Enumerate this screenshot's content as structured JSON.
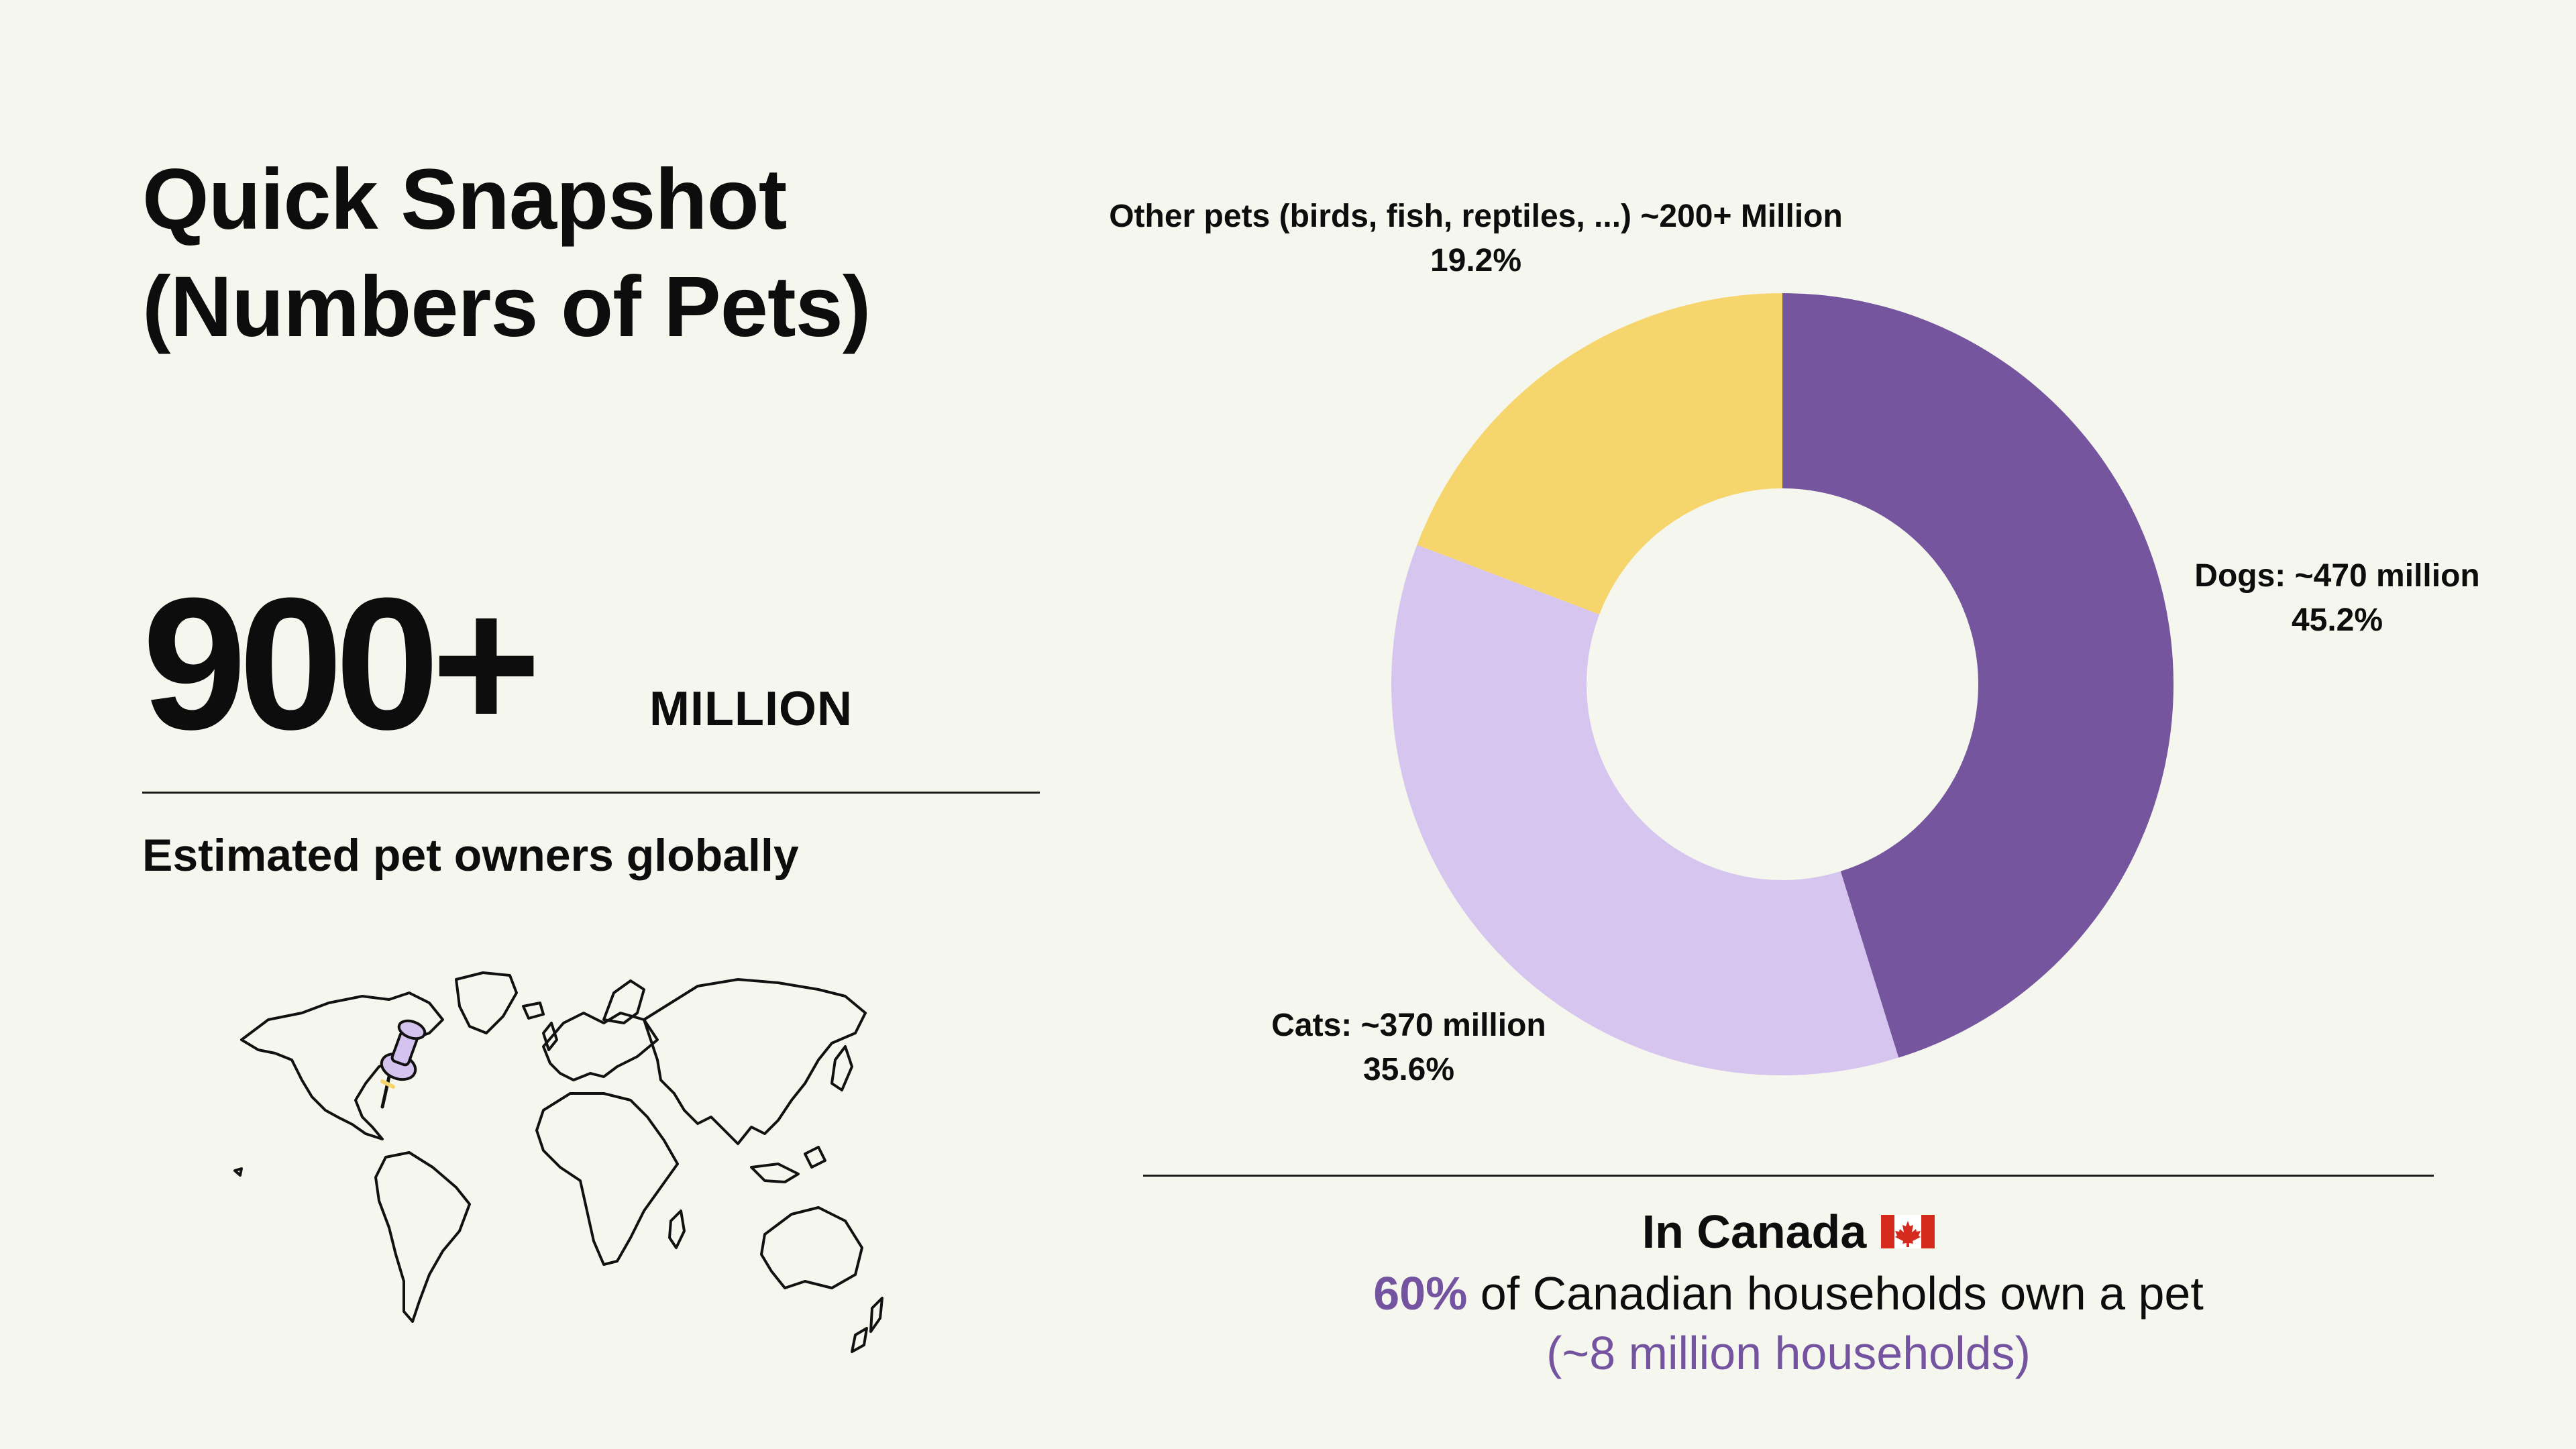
{
  "title": {
    "line1": "Quick Snapshot",
    "line2": "(Numbers of Pets)"
  },
  "headline": {
    "number": "900+",
    "unit": "MILLION",
    "caption": "Estimated pet owners globally"
  },
  "map": {
    "icon": "world-map-icon",
    "pin_icon": "pushpin-icon",
    "pin_color": "#d4c3ef",
    "pin_accent": "#f6d56e"
  },
  "chart_data": {
    "type": "pie",
    "donut": true,
    "start_angle_deg": 0,
    "direction": "clockwise",
    "slices": [
      {
        "label": "Dogs: ~470 million",
        "percent_label": "45.2%",
        "value": 45.2,
        "color": "#74559e"
      },
      {
        "label": "Cats: ~370 million",
        "percent_label": "35.6%",
        "value": 35.6,
        "color": "#d6c6ef"
      },
      {
        "label": "Other pets (birds, fish, reptiles, ...) ~200+ Million",
        "percent_label": "19.2%",
        "value": 19.2,
        "color": "#f7d56d"
      }
    ]
  },
  "canada": {
    "title": "In Canada",
    "flag_icon": "canada-flag-icon",
    "stat": "60%",
    "stat_text": "of Canadian households own a pet",
    "sub": "(~8 million households)",
    "accent_color": "#7454a0"
  }
}
